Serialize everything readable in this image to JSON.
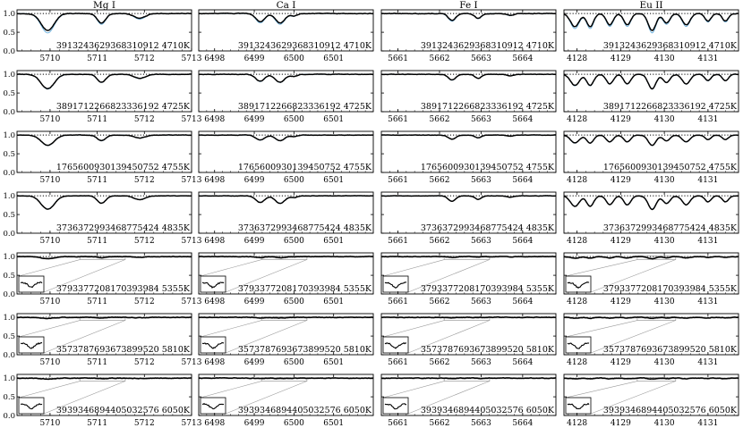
{
  "figure": {
    "background": "#ffffff"
  },
  "chart_data": {
    "type": "line",
    "grid": false,
    "legend": "none",
    "colors": {
      "observed": "#000000",
      "model": "#6ab0de",
      "continuum": "#000000",
      "inset_box": "#9a9a9a",
      "band": "#c8c8c8"
    },
    "columns": [
      {
        "title": "Mg I",
        "xlim": [
          5709.3,
          5713.0
        ],
        "xticks": [
          "5710",
          "5711",
          "5712",
          "5713"
        ],
        "xtick_values": [
          5710,
          5711,
          5712,
          5713
        ],
        "lines": [
          {
            "center": 5709.95,
            "depth": 0.45,
            "width": 0.14
          },
          {
            "center": 5711.09,
            "depth": 0.25,
            "width": 0.09
          },
          {
            "center": 5711.9,
            "depth": 0.13,
            "width": 0.12
          }
        ]
      },
      {
        "title": "Ca I",
        "xlim": [
          6497.6,
          6502.0
        ],
        "xticks": [
          "6498",
          "6499",
          "6500",
          "6501"
        ],
        "xtick_values": [
          6498,
          6499,
          6500,
          6501
        ],
        "lines": [
          {
            "center": 6499.15,
            "depth": 0.22,
            "width": 0.11
          },
          {
            "center": 6499.65,
            "depth": 0.25,
            "width": 0.12
          },
          {
            "center": 6500.0,
            "depth": 0.06,
            "width": 0.08
          }
        ]
      },
      {
        "title": "Fe I",
        "xlim": [
          5660.6,
          5664.8
        ],
        "xticks": [
          "5661",
          "5662",
          "5663",
          "5664"
        ],
        "xtick_values": [
          5661,
          5662,
          5663,
          5664
        ],
        "lines": [
          {
            "center": 5662.3,
            "depth": 0.18,
            "width": 0.09
          },
          {
            "center": 5662.93,
            "depth": 0.12,
            "width": 0.08
          },
          {
            "center": 5663.7,
            "depth": 0.05,
            "width": 0.08
          }
        ]
      },
      {
        "title": "Eu II",
        "xlim": [
          4127.7,
          4131.7
        ],
        "xticks": [
          "4128",
          "4129",
          "4130",
          "4131"
        ],
        "xtick_values": [
          4128,
          4129,
          4130,
          4131
        ],
        "lines": [
          {
            "center": 4127.95,
            "depth": 0.35,
            "width": 0.1
          },
          {
            "center": 4128.3,
            "depth": 0.35,
            "width": 0.08
          },
          {
            "center": 4128.75,
            "depth": 0.3,
            "width": 0.08
          },
          {
            "center": 4129.15,
            "depth": 0.3,
            "width": 0.08
          },
          {
            "center": 4129.72,
            "depth": 0.45,
            "width": 0.09
          },
          {
            "center": 4130.05,
            "depth": 0.25,
            "width": 0.08
          },
          {
            "center": 4130.5,
            "depth": 0.3,
            "width": 0.09
          },
          {
            "center": 4131.0,
            "depth": 0.2,
            "width": 0.07
          },
          {
            "center": 4131.4,
            "depth": 0.2,
            "width": 0.07
          }
        ]
      }
    ],
    "yticks": [
      "0.0",
      "0.5",
      "1.0"
    ],
    "ytick_values": [
      0,
      0.5,
      1.0
    ],
    "ylim": [
      0,
      1.1
    ],
    "continuum_level": 1.0,
    "rows": [
      {
        "label": "3913243629368310912 4710K",
        "line_scale": 1.0,
        "noise": 0.015,
        "model_scale": 1.0,
        "inset": false
      },
      {
        "label": "3891712266823336192 4725K",
        "line_scale": 0.85,
        "noise": 0.012,
        "model_scale": 0.9,
        "inset": false
      },
      {
        "label": "1765600930139450752 4755K",
        "line_scale": 0.6,
        "noise": 0.01,
        "model_scale": 0.9,
        "inset": false
      },
      {
        "label": "3736372993468775424 4835K",
        "line_scale": 0.8,
        "noise": 0.01,
        "model_scale": 0.85,
        "inset": false
      },
      {
        "label": "3793377208170393984 5355K",
        "line_scale": 0.12,
        "noise": 0.012,
        "model_scale": 0.0,
        "inset": true
      },
      {
        "label": "3573787693673899520 5810K",
        "line_scale": 0.06,
        "noise": 0.014,
        "model_scale": 0.0,
        "inset": true
      },
      {
        "label": "3939346894405032576 6050K",
        "line_scale": 0.05,
        "noise": 0.016,
        "model_scale": 0.0,
        "inset": true
      }
    ]
  }
}
